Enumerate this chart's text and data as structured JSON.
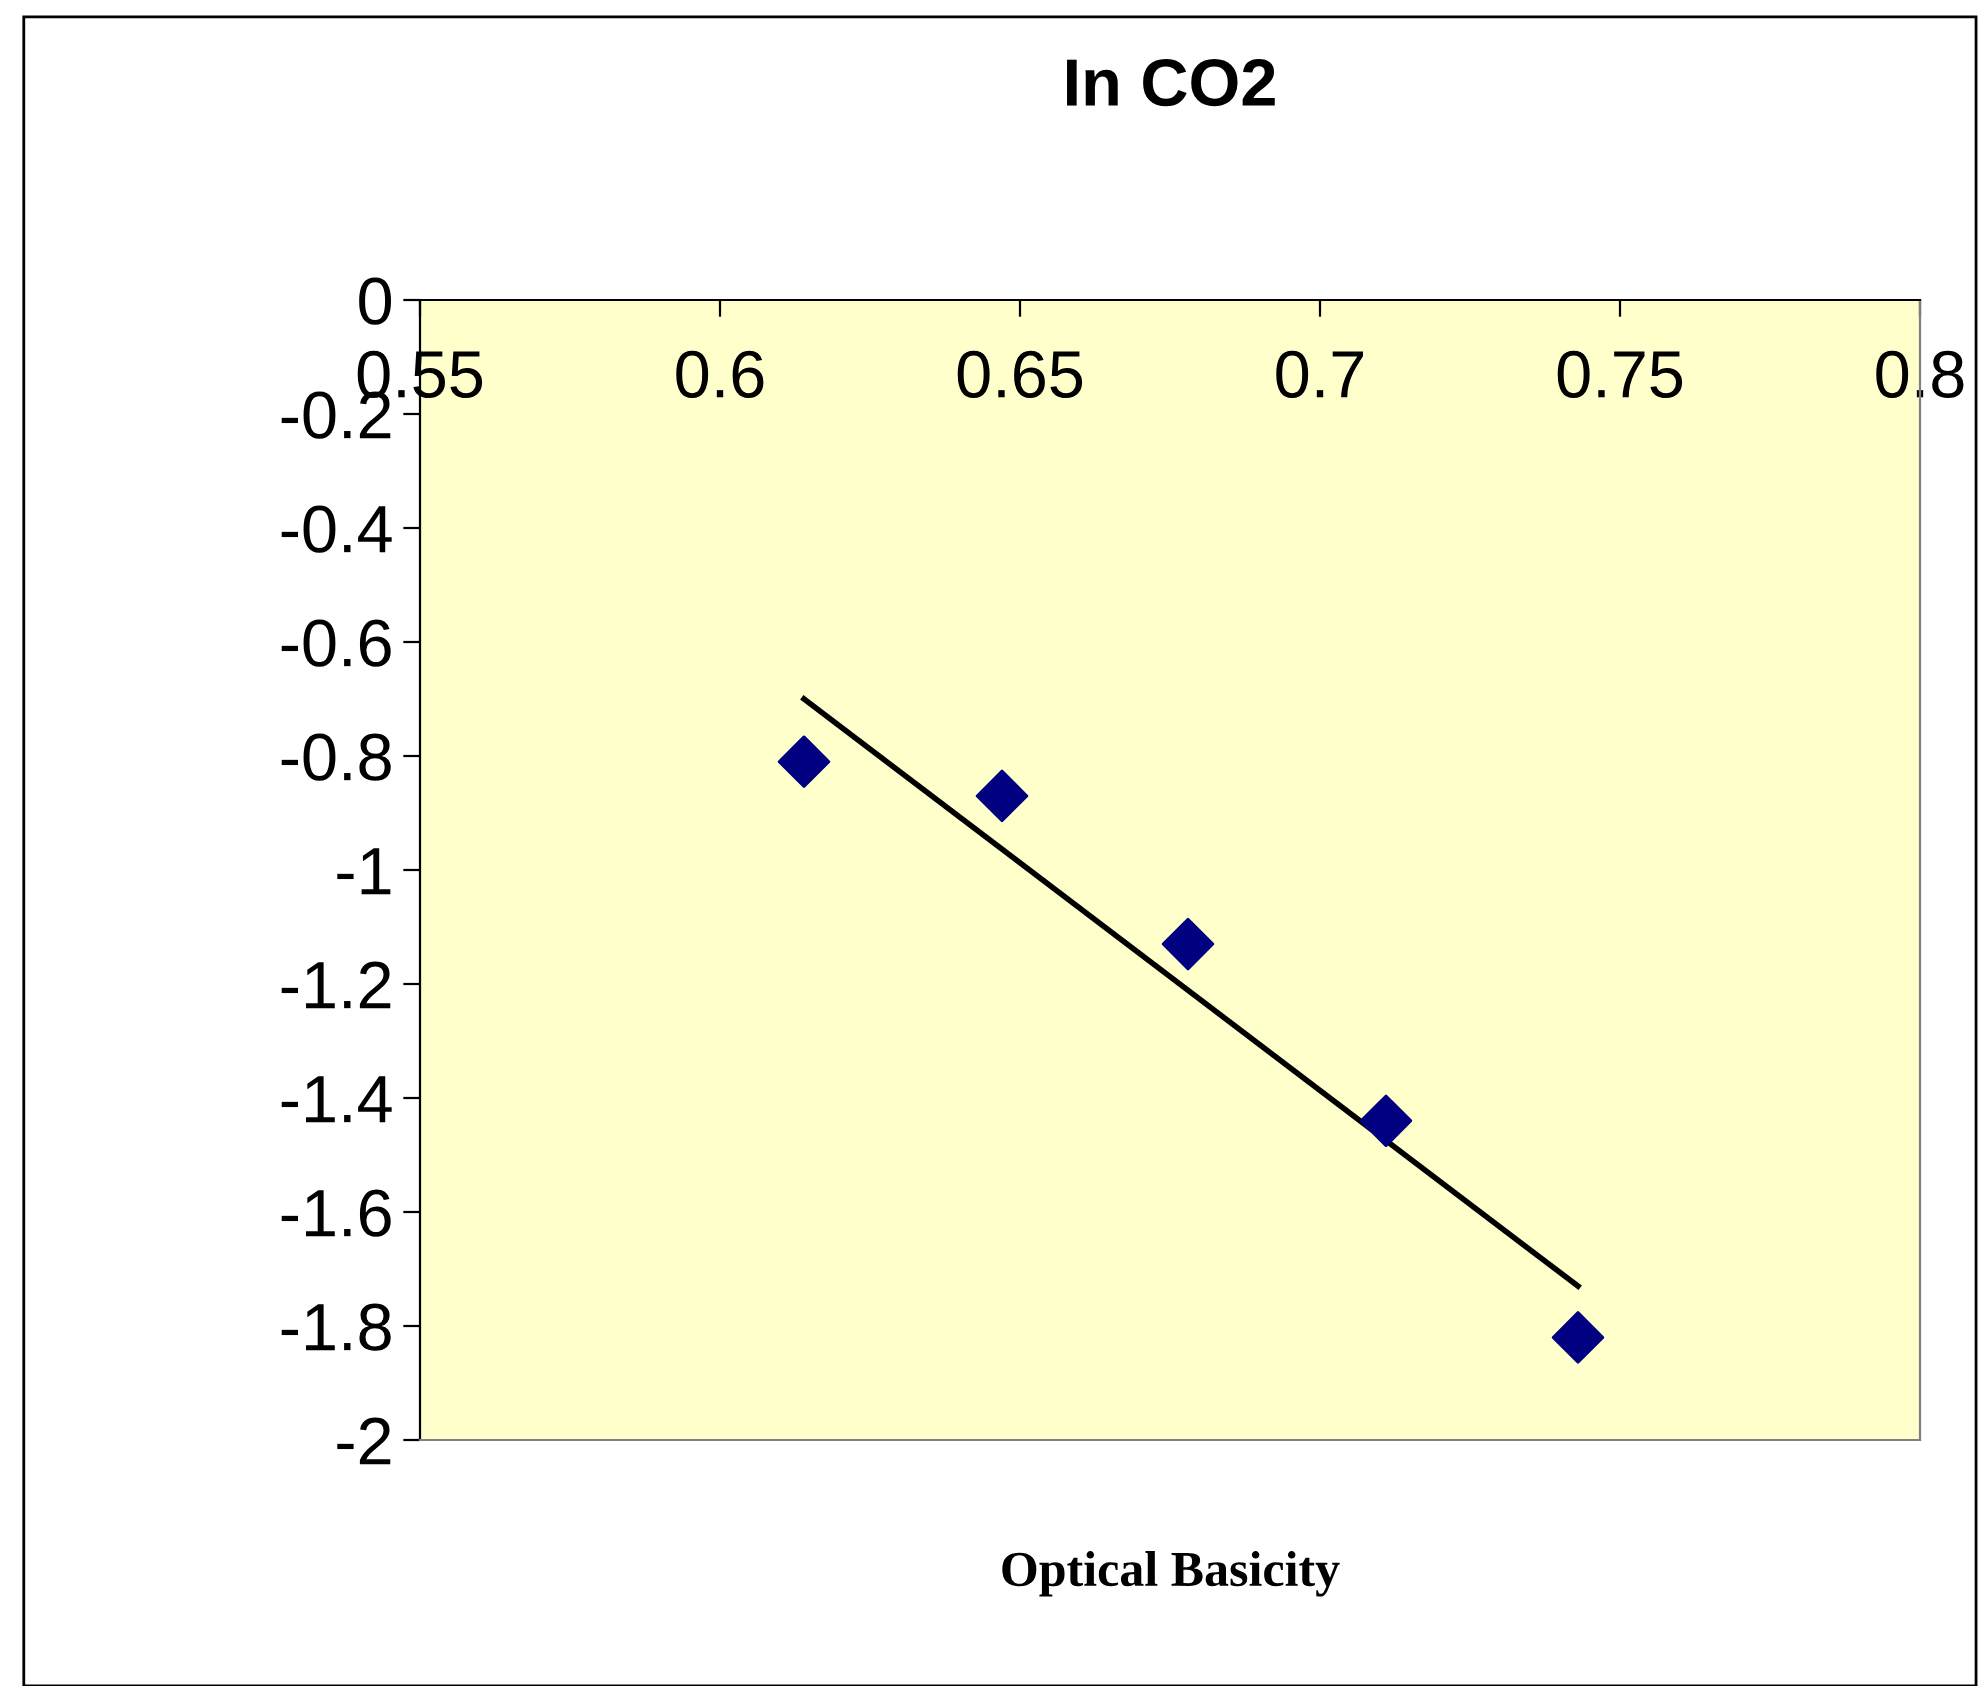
{
  "chart_data": {
    "type": "scatter",
    "title": "In CO2",
    "xlabel": "Optical Basicity",
    "xlim": [
      0.55,
      0.8
    ],
    "xticks": [
      0.55,
      0.6,
      0.65,
      0.7,
      0.75,
      0.8
    ],
    "ylim": [
      -2,
      0
    ],
    "yticks": [
      -2,
      -1.8,
      -1.6,
      -1.4,
      -1.2,
      -1,
      -0.8,
      -0.6,
      -0.4,
      -0.2,
      0
    ],
    "grid": false,
    "series": [
      {
        "marker": "diamond",
        "color": "#000080",
        "x": [
          0.614,
          0.647,
          0.678,
          0.711,
          0.743
        ],
        "values": [
          -0.81,
          -0.87,
          -1.13,
          -1.44,
          -1.82
        ]
      },
      {
        "type": "line",
        "marker": "none",
        "line_style": "solid",
        "color": "#000000",
        "x": [
          0.614,
          0.743
        ],
        "values": [
          -0.7,
          -1.73
        ]
      }
    ]
  }
}
